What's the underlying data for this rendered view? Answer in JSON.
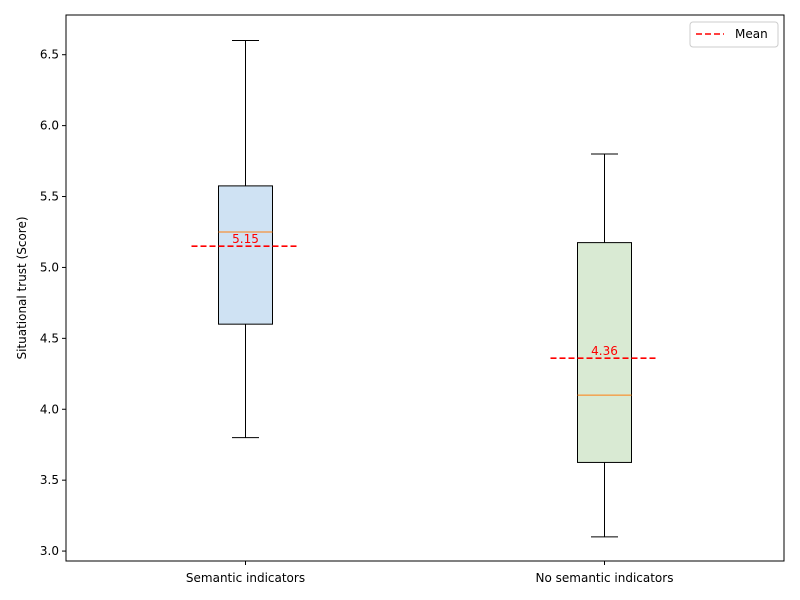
{
  "chart_data": {
    "type": "box",
    "title": "",
    "xlabel": "",
    "ylabel": "Situational trust (Score)",
    "ylim": [
      2.93,
      6.78
    ],
    "yticks": [
      "3.0",
      "3.5",
      "4.0",
      "4.5",
      "5.0",
      "5.5",
      "6.0",
      "6.5"
    ],
    "grid": false,
    "legend": {
      "placement": "top-right",
      "entries": [
        {
          "label": "Mean",
          "color": "#ff0000",
          "style": "dashed"
        }
      ]
    },
    "categories": [
      "Semantic indicators",
      "No semantic indicators"
    ],
    "boxes": [
      {
        "category": "Semantic indicators",
        "whisker_low": 3.8,
        "q1": 4.6,
        "median": 5.25,
        "q3": 5.575,
        "whisker_high": 6.6,
        "mean": 5.15,
        "mean_label": "5.15",
        "fill": "#cfe2f3"
      },
      {
        "category": "No semantic indicators",
        "whisker_low": 3.1,
        "q1": 3.625,
        "median": 4.1,
        "q3": 5.175,
        "whisker_high": 5.8,
        "mean": 4.36,
        "mean_label": "4.36",
        "fill": "#d9ead3"
      }
    ],
    "colors": {
      "median": "#ff7f0e",
      "mean": "#ff0000",
      "box_edge": "#000000"
    }
  }
}
